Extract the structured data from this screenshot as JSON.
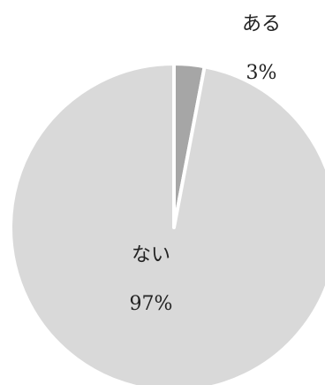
{
  "chart_data": {
    "type": "pie",
    "title": "",
    "slices": [
      {
        "label": "ある",
        "value": 3,
        "value_label": "3%",
        "color": "#a6a6a6"
      },
      {
        "label": "ない",
        "value": 97,
        "value_label": "97%",
        "color": "#d9d9d9"
      }
    ],
    "start_angle": "12 o'clock",
    "direction": "clockwise",
    "slice_border_color": "#ffffff",
    "legend": "none"
  }
}
